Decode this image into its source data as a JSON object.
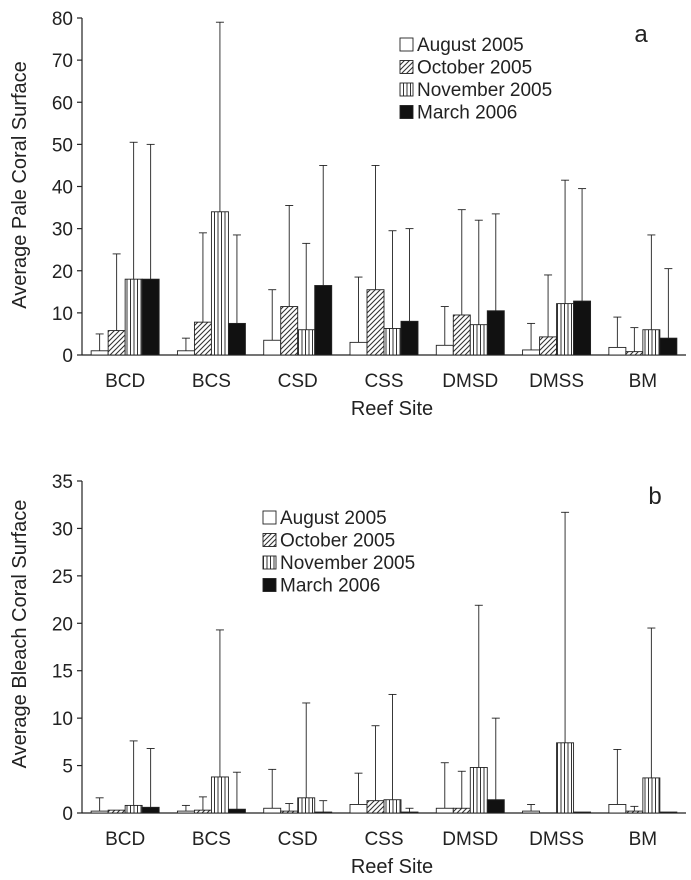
{
  "colors": {
    "axis": "#222222",
    "bar_outline": "#222222",
    "march_fill": "#111111",
    "august_fill": "#ffffff"
  },
  "chart_data": [
    {
      "type": "bar",
      "panel_label": "a",
      "xlabel": "Reef Site",
      "ylabel": "Average Pale Coral Surface",
      "ylim": [
        0,
        80
      ],
      "yticks": [
        "0",
        "10",
        "20",
        "30",
        "40",
        "50",
        "60",
        "70",
        "80"
      ],
      "grid": false,
      "legend_position": "top-right",
      "error_bars": "upper",
      "categories": [
        "BCD",
        "BCS",
        "CSD",
        "CSS",
        "DMSD",
        "DMSS",
        "BM"
      ],
      "series": [
        {
          "name": "August 2005",
          "pattern": "open",
          "values": [
            1,
            1,
            3.5,
            3,
            2.3,
            1.2,
            1.8
          ],
          "error_upper": [
            5,
            4,
            15.5,
            18.5,
            11.5,
            7.5,
            9
          ]
        },
        {
          "name": "October 2005",
          "pattern": "diagonal-hatch",
          "values": [
            5.8,
            7.8,
            11.5,
            15.5,
            9.5,
            4.3,
            0.8
          ],
          "error_upper": [
            24,
            29,
            35.5,
            45,
            34.5,
            19,
            6.5
          ]
        },
        {
          "name": "November 2005",
          "pattern": "vertical-stripes",
          "values": [
            18,
            34,
            6,
            6.3,
            7.2,
            12.2,
            6
          ],
          "error_upper": [
            50.5,
            79,
            26.5,
            29.5,
            32,
            41.5,
            28.5
          ]
        },
        {
          "name": "March 2006",
          "pattern": "solid",
          "values": [
            18,
            7.5,
            16.5,
            8,
            10.5,
            12.8,
            4
          ],
          "error_upper": [
            50,
            28.5,
            45,
            30,
            33.5,
            39.5,
            20.5
          ]
        }
      ]
    },
    {
      "type": "bar",
      "panel_label": "b",
      "xlabel": "Reef Site",
      "ylabel": "Average Bleach Coral Surface",
      "ylim": [
        0,
        35
      ],
      "yticks": [
        "0",
        "5",
        "10",
        "15",
        "20",
        "25",
        "30",
        "35"
      ],
      "grid": false,
      "legend_position": "top-center",
      "error_bars": "upper",
      "categories": [
        "BCD",
        "BCS",
        "CSD",
        "CSS",
        "DMSD",
        "DMSS",
        "BM"
      ],
      "series": [
        {
          "name": "August 2005",
          "pattern": "open",
          "values": [
            0.2,
            0.2,
            0.5,
            0.9,
            0.5,
            0.2,
            0.9
          ],
          "error_upper": [
            1.6,
            0.8,
            4.6,
            4.2,
            5.3,
            0.9,
            6.7
          ]
        },
        {
          "name": "October 2005",
          "pattern": "diagonal-hatch",
          "values": [
            0.3,
            0.3,
            0.2,
            1.3,
            0.5,
            0.0,
            0.2
          ],
          "error_upper": [
            0.3,
            1.7,
            1.0,
            9.2,
            4.4,
            0.0,
            0.7
          ]
        },
        {
          "name": "November 2005",
          "pattern": "vertical-stripes",
          "values": [
            0.8,
            3.8,
            1.6,
            1.4,
            4.8,
            7.4,
            3.7
          ],
          "error_upper": [
            7.6,
            19.3,
            11.6,
            12.5,
            21.9,
            31.7,
            19.5
          ]
        },
        {
          "name": "March 2006",
          "pattern": "solid",
          "values": [
            0.6,
            0.4,
            0.1,
            0.1,
            1.4,
            0.1,
            0.1
          ],
          "error_upper": [
            6.8,
            4.3,
            1.3,
            0.5,
            10.0,
            0.1,
            0.1
          ]
        }
      ]
    }
  ]
}
